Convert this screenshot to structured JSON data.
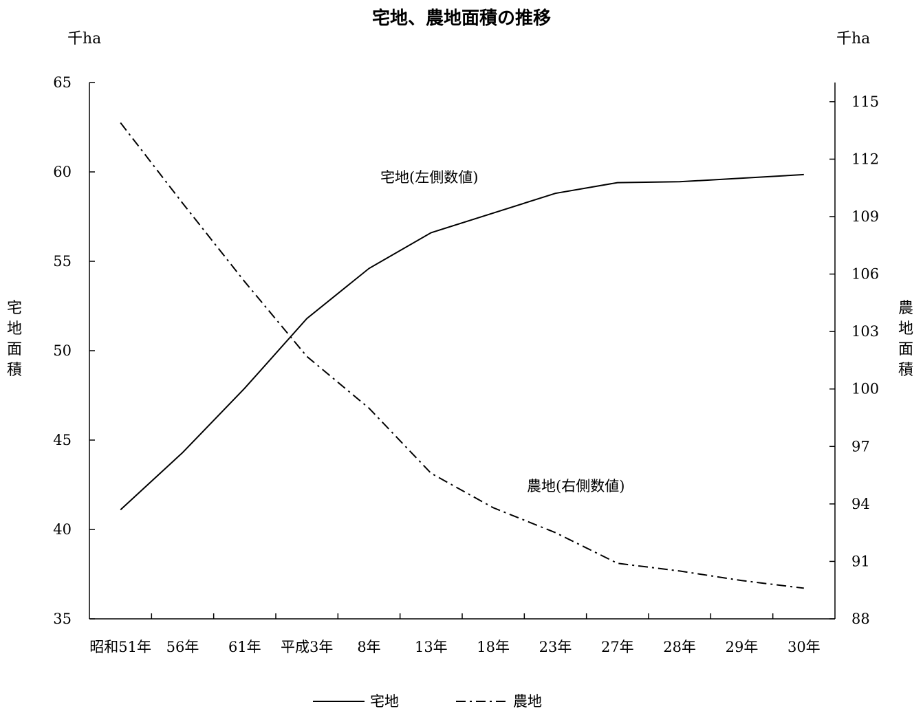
{
  "chart_data": {
    "type": "line",
    "title": "宅地、農地面積の推移",
    "unit_left": "千ha",
    "unit_right": "千ha",
    "ylabel_left": "宅地面積",
    "ylabel_right": "農地面積",
    "categories": [
      "昭和51年",
      "56年",
      "61年",
      "平成3年",
      "8年",
      "13年",
      "18年",
      "23年",
      "27年",
      "28年",
      "29年",
      "30年"
    ],
    "series": [
      {
        "name": "宅地",
        "axis": "left",
        "style": "solid",
        "color": "#000000",
        "values": [
          41.1,
          44.3,
          47.9,
          51.8,
          54.6,
          56.6,
          57.7,
          58.8,
          59.4,
          59.45,
          59.65,
          59.85
        ]
      },
      {
        "name": "農地",
        "axis": "right",
        "style": "dashdot",
        "color": "#000000",
        "values": [
          113.9,
          109.7,
          105.6,
          101.7,
          99.0,
          95.6,
          93.8,
          92.5,
          90.9,
          90.5,
          90.0,
          89.6
        ]
      }
    ],
    "yleft": {
      "min": 35,
      "max": 65,
      "ticks": [
        35,
        40,
        45,
        50,
        55,
        60,
        65
      ]
    },
    "yright": {
      "min": 88,
      "max": 116,
      "ticks": [
        88,
        91,
        94,
        97,
        100,
        103,
        106,
        109,
        112,
        115
      ]
    },
    "annotations": [
      {
        "text": "宅地(左側数値)",
        "series": "宅地"
      },
      {
        "text": "農地(右側数値)",
        "series": "農地"
      }
    ],
    "legend": {
      "placement": "bottom",
      "items": [
        "宅地",
        "農地"
      ]
    },
    "grid": false
  }
}
